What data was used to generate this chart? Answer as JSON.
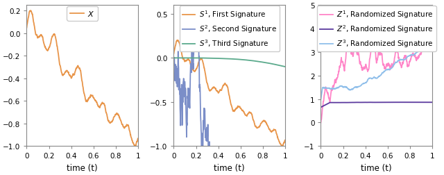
{
  "xlabel": "time (t)",
  "xlim": [
    0,
    1
  ],
  "ylim1": [
    -1,
    0.25
  ],
  "ylim2": [
    -1,
    0.6
  ],
  "ylim3": [
    -1,
    5
  ],
  "yticks1": [
    -1,
    -0.8,
    -0.6,
    -0.4,
    -0.2,
    0,
    0.2
  ],
  "yticks2": [
    -1,
    -0.5,
    0,
    0.5
  ],
  "yticks3": [
    -1,
    0,
    1,
    2,
    3,
    4,
    5
  ],
  "xticks": [
    0,
    0.2,
    0.4,
    0.6,
    0.8,
    1
  ],
  "color_X": "#E8954A",
  "color_S1": "#E8954A",
  "color_S2": "#7B8EC8",
  "color_S3": "#5BAA8C",
  "color_Z1": "#FF85C8",
  "color_Z2": "#5B3A9E",
  "color_Z3": "#90BFEA",
  "legend1_label": "$X$",
  "legend2_labels": [
    "$S^1$, First Signature",
    "$S^2$, Second Signature",
    "$S^3$, Third Signature"
  ],
  "legend3_labels": [
    "$Z^1$, Randomized Signature",
    "$Z^2$, Randomized Signature",
    "$Z^3$, Randomized Signature"
  ],
  "lw": 1.3,
  "figsize": [
    6.4,
    2.53
  ],
  "dpi": 100
}
